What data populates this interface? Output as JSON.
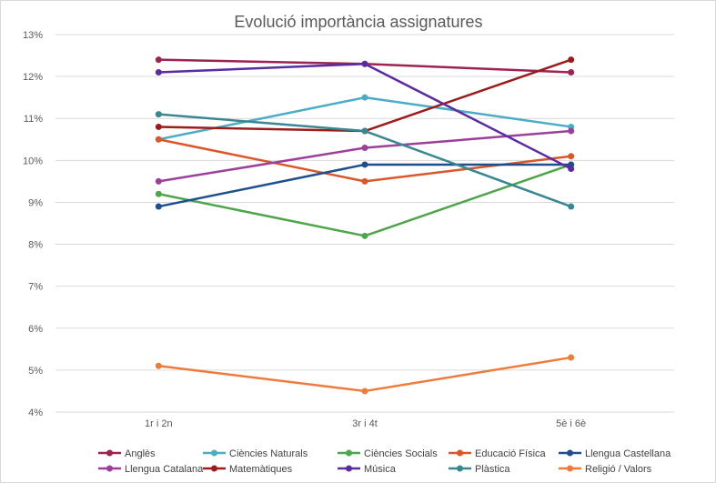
{
  "chart_data": {
    "type": "line",
    "title": "Evolució importància assignatures",
    "xlabel": "",
    "ylabel": "",
    "categories": [
      "1r i 2n",
      "3r i 4t",
      "5è i 6è"
    ],
    "ylim": [
      4,
      13
    ],
    "yticks": [
      4,
      5,
      6,
      7,
      8,
      9,
      10,
      11,
      12,
      13
    ],
    "ytick_labels": [
      "4%",
      "5%",
      "6%",
      "7%",
      "8%",
      "9%",
      "10%",
      "11%",
      "12%",
      "13%"
    ],
    "grid": true,
    "legend_position": "bottom",
    "series": [
      {
        "name": "Anglès",
        "color": "#9b2450",
        "values": [
          12.4,
          12.3,
          12.1
        ]
      },
      {
        "name": "Ciències Naturals",
        "color": "#4bacc6",
        "values": [
          10.5,
          11.5,
          10.8
        ]
      },
      {
        "name": "Ciències Socials",
        "color": "#4ea54b",
        "values": [
          9.2,
          8.2,
          9.9
        ]
      },
      {
        "name": "Educació Física",
        "color": "#d9572b",
        "values": [
          10.5,
          9.5,
          10.1
        ]
      },
      {
        "name": "Llengua Castellana",
        "color": "#1f4e8c",
        "values": [
          8.9,
          9.9,
          9.9
        ]
      },
      {
        "name": "Llengua Catalana",
        "color": "#9c3f9b",
        "values": [
          9.5,
          10.3,
          10.7
        ]
      },
      {
        "name": "Matemàtiques",
        "color": "#9b1c1c",
        "values": [
          10.8,
          10.7,
          12.4
        ]
      },
      {
        "name": "Música",
        "color": "#5b2c9f",
        "values": [
          12.1,
          12.3,
          9.8
        ]
      },
      {
        "name": "Plàstica",
        "color": "#3a8691",
        "values": [
          11.1,
          10.7,
          8.9
        ]
      },
      {
        "name": "Religió / Valors",
        "color": "#ef7b3b",
        "values": [
          5.1,
          4.5,
          5.3
        ]
      }
    ]
  }
}
